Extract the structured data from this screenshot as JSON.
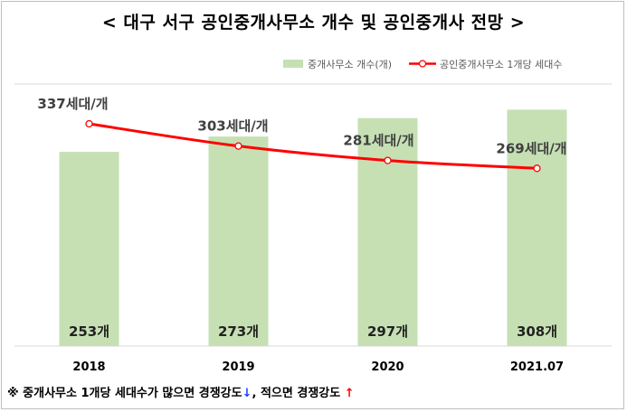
{
  "title": "< 대구 서구 공인중개사무소 개수 및 공인중개사 전망 >",
  "legend": {
    "bar": "중개사무소 개수(개)",
    "line": "공인중개사무소 1개당 세대수"
  },
  "colors": {
    "bar": "#c6e0b4",
    "line": "#ff0000",
    "grid": "#d9d9d9"
  },
  "chart_data": {
    "type": "bar",
    "categories": [
      "2018",
      "2019",
      "2020",
      "2021.07"
    ],
    "series": [
      {
        "name": "중개사무소 개수(개)",
        "type": "bar",
        "values": [
          253,
          273,
          297,
          308
        ],
        "labels": [
          "253개",
          "273개",
          "297개",
          "308개"
        ]
      },
      {
        "name": "공인중개사무소 1개당 세대수",
        "type": "line",
        "values": [
          337,
          303,
          281,
          269
        ],
        "labels": [
          "337세대/개",
          "303세대/개",
          "281세대/개",
          "269세대/개"
        ]
      }
    ],
    "grid": false,
    "legend_position": "top-right"
  },
  "footnote": {
    "part1": "※ 중개사무소 1개당 세대수가 많으면 경쟁강도",
    "arrow1": "↓",
    "part2": ", 적으면 경쟁강도 ",
    "arrow2": "↑"
  }
}
